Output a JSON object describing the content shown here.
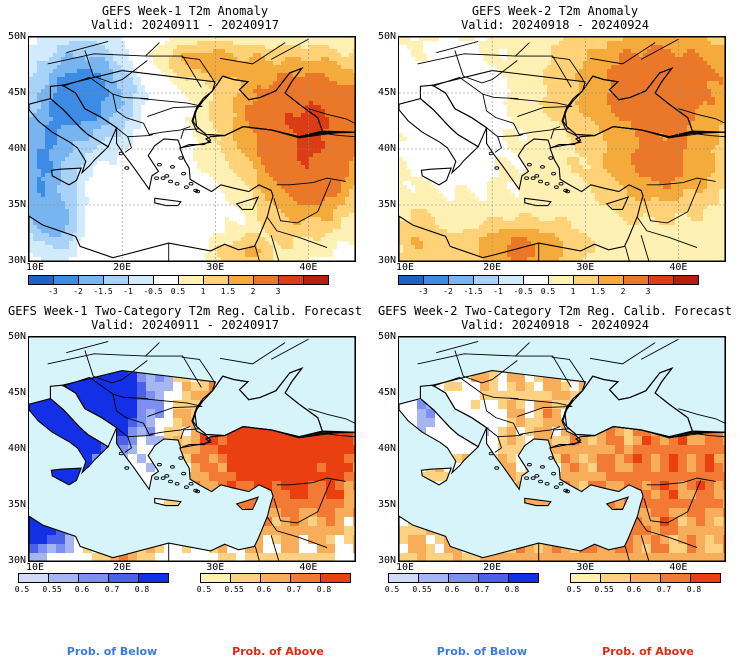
{
  "panels": [
    {
      "title1": "GEFS Week-1 T2m Anomaly",
      "title2": "Valid: 20240911 - 20240917",
      "lat_labels": [
        "50N",
        "45N",
        "40N",
        "35N",
        "30N"
      ],
      "lon_labels": [
        "10E",
        "20E",
        "30E",
        "40E"
      ],
      "colorbar_kind": "anomaly",
      "field": "w1_anom"
    },
    {
      "title1": "GEFS Week-2 T2m Anomaly",
      "title2": "Valid: 20240918 - 20240924",
      "lat_labels": [
        "50N",
        "45N",
        "40N",
        "35N",
        "30N"
      ],
      "lon_labels": [
        "10E",
        "20E",
        "30E",
        "40E"
      ],
      "colorbar_kind": "anomaly",
      "field": "w2_anom"
    },
    {
      "title1": "GEFS Week-1 Two-Category T2m Reg. Calib. Forecast",
      "title2": "Valid: 20240911 - 20240917",
      "lat_labels": [
        "50N",
        "45N",
        "40N",
        "35N",
        "30N"
      ],
      "lon_labels": [
        "10E",
        "20E",
        "30E",
        "40E"
      ],
      "colorbar_kind": "prob",
      "field": "w1_prob"
    },
    {
      "title1": "GEFS Week-2 Two-Category T2m Reg. Calib. Forecast",
      "title2": "Valid: 20240918 - 20240924",
      "lat_labels": [
        "50N",
        "45N",
        "40N",
        "35N",
        "30N"
      ],
      "lon_labels": [
        "10E",
        "20E",
        "30E",
        "40E"
      ],
      "colorbar_kind": "prob",
      "field": "w2_prob"
    }
  ],
  "anomaly_colorbar": {
    "ticks": [
      "-3",
      "-2",
      "-1.5",
      "-1",
      "-0.5",
      "0.5",
      "1",
      "1.5",
      "2",
      "3"
    ],
    "colors": [
      "#1e64c8",
      "#3c8ce6",
      "#78b4f0",
      "#a8d2f8",
      "#d2ebfc",
      "#ffffff",
      "#fff0b4",
      "#ffd278",
      "#f5aa3c",
      "#eb7828",
      "#dc3c14",
      "#b41e0a"
    ]
  },
  "prob_below_colorbar": {
    "ticks": [
      "0.5",
      "0.55",
      "0.6",
      "0.7",
      "0.8"
    ],
    "colors": [
      "#d2dcf8",
      "#a6b6f2",
      "#7d8ff0",
      "#4a62ea",
      "#1430e6"
    ]
  },
  "prob_above_colorbar": {
    "ticks": [
      "0.5",
      "0.55",
      "0.6",
      "0.7",
      "0.8"
    ],
    "colors": [
      "#fff0b4",
      "#fcd282",
      "#f8ad5a",
      "#f27a34",
      "#ea3f10"
    ]
  },
  "legend": {
    "below_label": "Prob. of Below",
    "above_label": "Prob. of Above",
    "below_color": "#3a7be0",
    "above_color": "#e02a10"
  },
  "ocean_color": "#d6f4fa"
}
